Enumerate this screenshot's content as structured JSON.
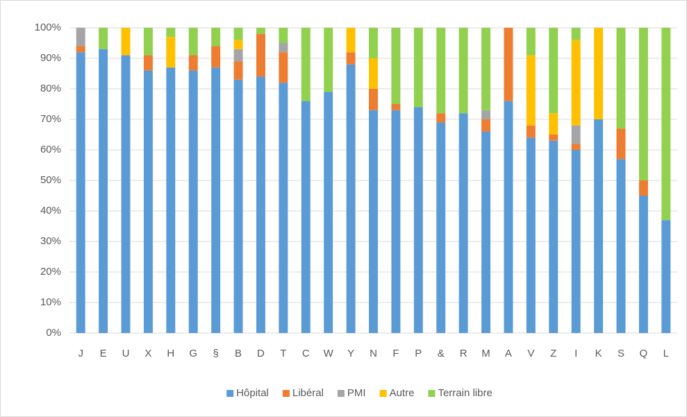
{
  "chart_data": {
    "type": "stacked_bar",
    "categories": [
      "J",
      "E",
      "U",
      "X",
      "H",
      "G",
      "§",
      "B",
      "D",
      "T",
      "C",
      "W",
      "Y",
      "N",
      "F",
      "P",
      "&",
      "R",
      "M",
      "A",
      "V",
      "Z",
      "I",
      "K",
      "S",
      "Q",
      "L"
    ],
    "series": [
      {
        "name": "Hôpital",
        "color": "#5b9bd5",
        "values": [
          92,
          93,
          91,
          86,
          87,
          86,
          87,
          83,
          84,
          82,
          76,
          79,
          88,
          73,
          73,
          74,
          69,
          72,
          66,
          76,
          64,
          63,
          60,
          70,
          57,
          45,
          37
        ]
      },
      {
        "name": "Libéral",
        "color": "#ed7d31",
        "values": [
          2,
          0,
          0,
          5,
          0,
          5,
          7,
          6,
          14,
          10,
          0,
          0,
          4,
          7,
          2,
          0,
          3,
          0,
          4,
          24,
          4,
          2,
          2,
          0,
          10,
          5,
          0
        ]
      },
      {
        "name": "PMI",
        "color": "#a5a5a5",
        "values": [
          6,
          0,
          0,
          0,
          0,
          0,
          0,
          4,
          0,
          3,
          0,
          0,
          0,
          0,
          0,
          0,
          0,
          0,
          3,
          0,
          0,
          0,
          6,
          0,
          0,
          0,
          0
        ]
      },
      {
        "name": "Autre",
        "color": "#ffc000",
        "values": [
          0,
          0,
          9,
          0,
          10,
          0,
          0,
          3,
          0,
          0,
          0,
          0,
          8,
          10,
          0,
          0,
          0,
          0,
          0,
          0,
          23,
          7,
          28,
          30,
          0,
          0,
          0
        ]
      },
      {
        "name": "Terrain libre",
        "color": "#92d050",
        "values": [
          0,
          7,
          0,
          9,
          3,
          9,
          6,
          4,
          2,
          5,
          24,
          21,
          0,
          10,
          25,
          26,
          28,
          28,
          27,
          0,
          9,
          28,
          4,
          0,
          33,
          50,
          63
        ]
      }
    ],
    "ylim": [
      0,
      100
    ],
    "yticks": [
      {
        "value": 0,
        "label": "0%"
      },
      {
        "value": 10,
        "label": "10%"
      },
      {
        "value": 20,
        "label": "20%"
      },
      {
        "value": 30,
        "label": "30%"
      },
      {
        "value": 40,
        "label": "40%"
      },
      {
        "value": 50,
        "label": "50%"
      },
      {
        "value": 60,
        "label": "60%"
      },
      {
        "value": 70,
        "label": "70%"
      },
      {
        "value": 80,
        "label": "80%"
      },
      {
        "value": 90,
        "label": "90%"
      },
      {
        "value": 100,
        "label": "100%"
      }
    ],
    "grid": true,
    "legend": "bottom"
  }
}
